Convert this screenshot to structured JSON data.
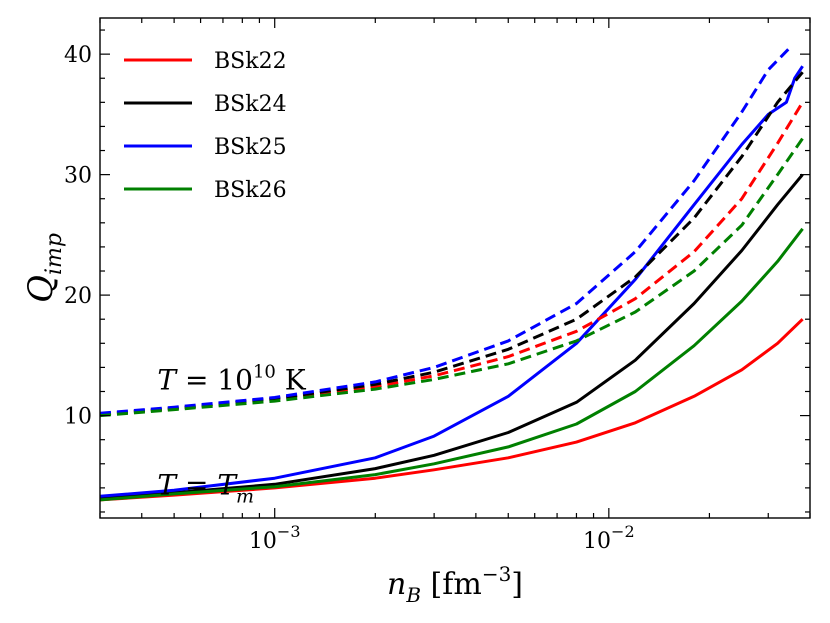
{
  "chart_data": {
    "type": "line",
    "xscale": "log",
    "xlim": [
      0.0003,
      0.04
    ],
    "ylim": [
      1.5,
      43
    ],
    "xlabel": "n_B [fm^-3]",
    "ylabel": "Q_imp",
    "xticks": [
      {
        "value": 0.001,
        "base": "10",
        "exp": "−3"
      },
      {
        "value": 0.01,
        "base": "10",
        "exp": "−2"
      }
    ],
    "yticks": [
      {
        "value": 10,
        "label": "10"
      },
      {
        "value": 20,
        "label": "20"
      },
      {
        "value": 30,
        "label": "30"
      },
      {
        "value": 40,
        "label": "40"
      }
    ],
    "legend_position": "top-left",
    "annotations": [
      {
        "name": "annotation-temperature-fixed",
        "text": "T = 10^10 K",
        "x": 0.00035,
        "y": 13.0
      },
      {
        "name": "annotation-temperature-melting",
        "text": "T = T_m",
        "x": 0.00035,
        "y": 4.3
      }
    ],
    "series": [
      {
        "name": "BSk22",
        "model": "BSk22",
        "style": "solid",
        "condition": "T = T_m",
        "color": "#ff0000",
        "legend": true,
        "x": [
          0.0003,
          0.0005,
          0.001,
          0.002,
          0.003,
          0.005,
          0.008,
          0.012,
          0.018,
          0.025,
          0.032,
          0.038
        ],
        "y": [
          3.0,
          3.4,
          4.0,
          4.8,
          5.5,
          6.5,
          7.8,
          9.4,
          11.6,
          13.8,
          16.0,
          18.0
        ]
      },
      {
        "name": "BSk24",
        "model": "BSk24",
        "style": "solid",
        "condition": "T = T_m",
        "color": "#000000",
        "legend": true,
        "x": [
          0.0003,
          0.0005,
          0.001,
          0.002,
          0.003,
          0.005,
          0.008,
          0.012,
          0.018,
          0.025,
          0.032,
          0.038
        ],
        "y": [
          3.1,
          3.6,
          4.3,
          5.6,
          6.7,
          8.6,
          11.1,
          14.6,
          19.3,
          23.7,
          27.5,
          30.0
        ]
      },
      {
        "name": "BSk25",
        "model": "BSk25",
        "style": "solid",
        "condition": "T = T_m",
        "color": "#0000ff",
        "legend": true,
        "x": [
          0.0003,
          0.0005,
          0.001,
          0.002,
          0.003,
          0.005,
          0.008,
          0.012,
          0.018,
          0.025,
          0.03,
          0.034,
          0.036,
          0.038
        ],
        "y": [
          3.3,
          3.8,
          4.8,
          6.5,
          8.3,
          11.6,
          16.0,
          21.3,
          27.5,
          32.5,
          35.0,
          36.0,
          38.0,
          39.0
        ]
      },
      {
        "name": "BSk26",
        "model": "BSk26",
        "style": "solid",
        "condition": "T = T_m",
        "color": "#008000",
        "legend": true,
        "x": [
          0.0003,
          0.0005,
          0.001,
          0.002,
          0.003,
          0.005,
          0.008,
          0.012,
          0.018,
          0.025,
          0.032,
          0.038
        ],
        "y": [
          3.0,
          3.5,
          4.1,
          5.1,
          6.0,
          7.4,
          9.3,
          12.0,
          15.8,
          19.5,
          22.8,
          25.5
        ]
      },
      {
        "name": "BSk22",
        "model": "BSk22",
        "style": "dashed",
        "condition": "T = 10^10 K",
        "color": "#ff0000",
        "legend": false,
        "x": [
          0.0003,
          0.0005,
          0.001,
          0.002,
          0.003,
          0.005,
          0.008,
          0.012,
          0.018,
          0.025,
          0.032,
          0.038
        ],
        "y": [
          10.1,
          10.6,
          11.4,
          12.4,
          13.3,
          14.9,
          17.0,
          19.7,
          23.6,
          28.0,
          32.6,
          36.0
        ]
      },
      {
        "name": "BSk24",
        "model": "BSk24",
        "style": "dashed",
        "condition": "T = 10^10 K",
        "color": "#000000",
        "legend": false,
        "x": [
          0.0003,
          0.0005,
          0.001,
          0.002,
          0.003,
          0.005,
          0.008,
          0.012,
          0.018,
          0.025,
          0.032,
          0.038
        ],
        "y": [
          10.1,
          10.6,
          11.4,
          12.6,
          13.6,
          15.5,
          18.0,
          21.5,
          26.4,
          31.5,
          36.0,
          38.5
        ]
      },
      {
        "name": "BSk25",
        "model": "BSk25",
        "style": "dashed",
        "condition": "T = 10^10 K",
        "color": "#0000ff",
        "legend": false,
        "x": [
          0.0003,
          0.0005,
          0.001,
          0.002,
          0.003,
          0.005,
          0.008,
          0.012,
          0.018,
          0.025,
          0.03,
          0.035
        ],
        "y": [
          10.2,
          10.7,
          11.5,
          12.8,
          14.0,
          16.2,
          19.3,
          23.6,
          29.5,
          35.2,
          38.7,
          40.6
        ]
      },
      {
        "name": "BSk26",
        "model": "BSk26",
        "style": "dashed",
        "condition": "T = 10^10 K",
        "color": "#008000",
        "legend": false,
        "x": [
          0.0003,
          0.0005,
          0.001,
          0.002,
          0.003,
          0.005,
          0.008,
          0.012,
          0.018,
          0.025,
          0.032,
          0.038
        ],
        "y": [
          10.0,
          10.5,
          11.2,
          12.2,
          13.0,
          14.3,
          16.2,
          18.6,
          22.0,
          25.8,
          30.0,
          33.0
        ]
      }
    ]
  }
}
